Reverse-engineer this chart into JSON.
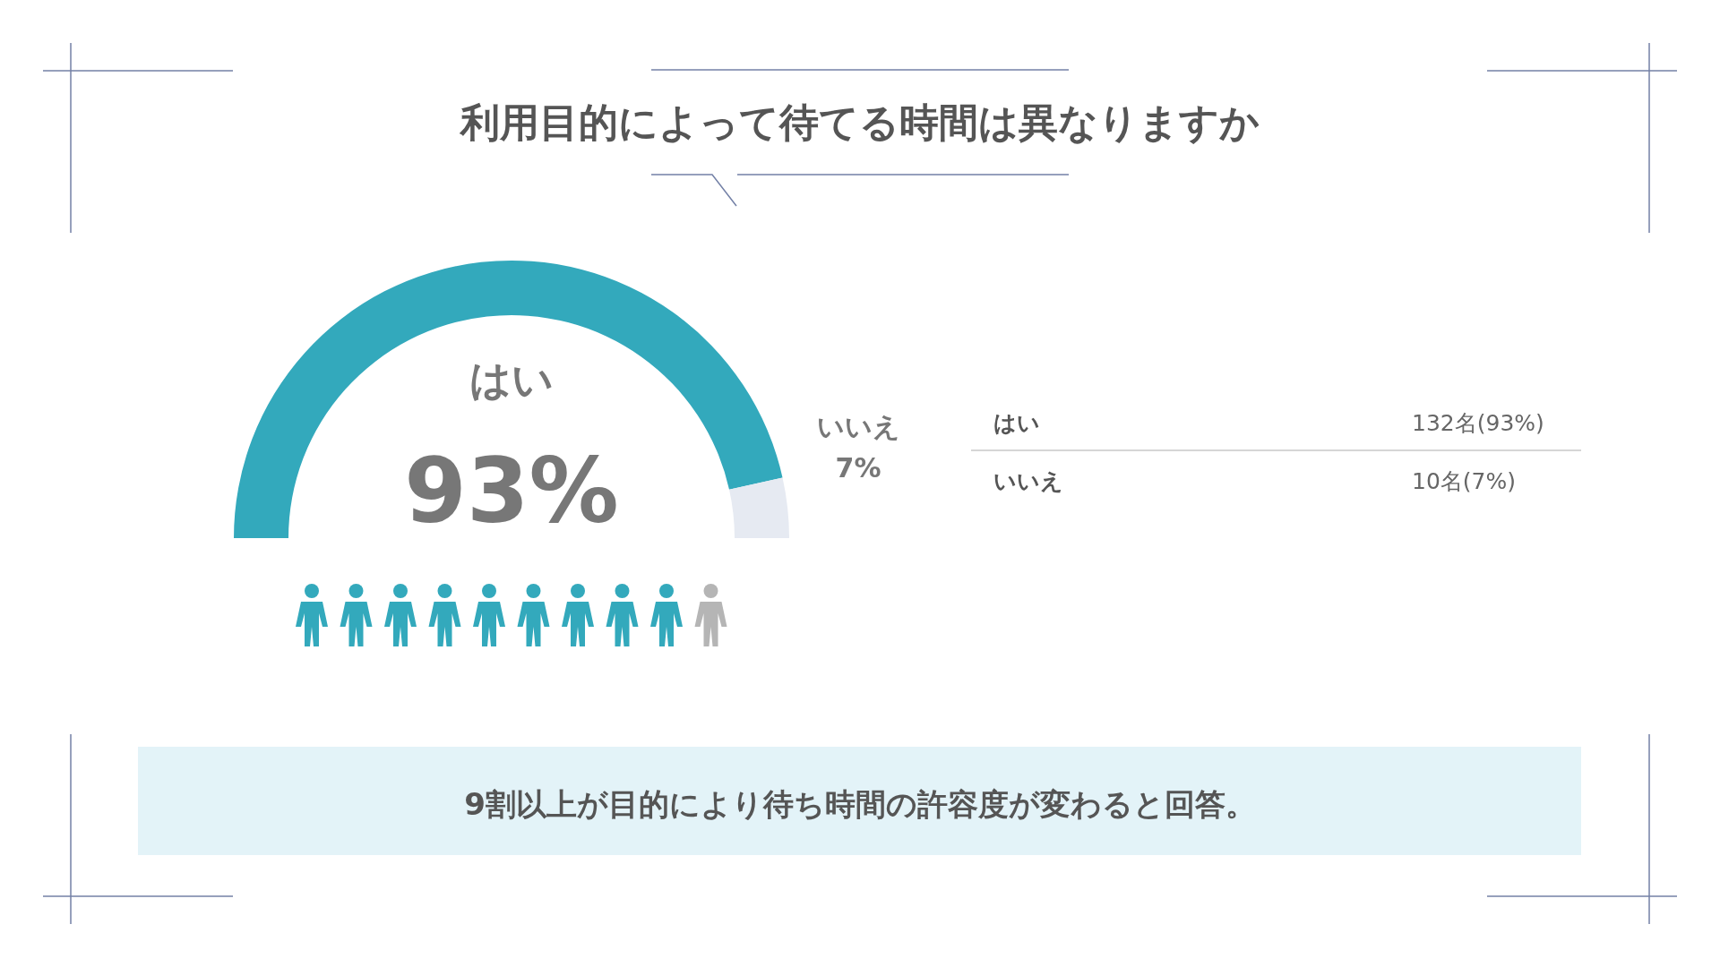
{
  "chart_data": [
    {
      "type": "donut",
      "title": "利用目的によって待てる時間は異なりますか",
      "categories": [
        "はい",
        "いいえ"
      ],
      "values": [
        93,
        7
      ],
      "colors": [
        "#33a9bc",
        "#e6eaf2"
      ],
      "value_labels": [
        "93%",
        "7%"
      ],
      "annotations": [
        "9割以上が目的により待ち時間の許容度が変わると回答。"
      ]
    },
    {
      "type": "other",
      "categories": [
        "はい",
        "いいえ"
      ],
      "value_labels": [
        "132名(93%)",
        "10名(7%)"
      ]
    }
  ]
}
